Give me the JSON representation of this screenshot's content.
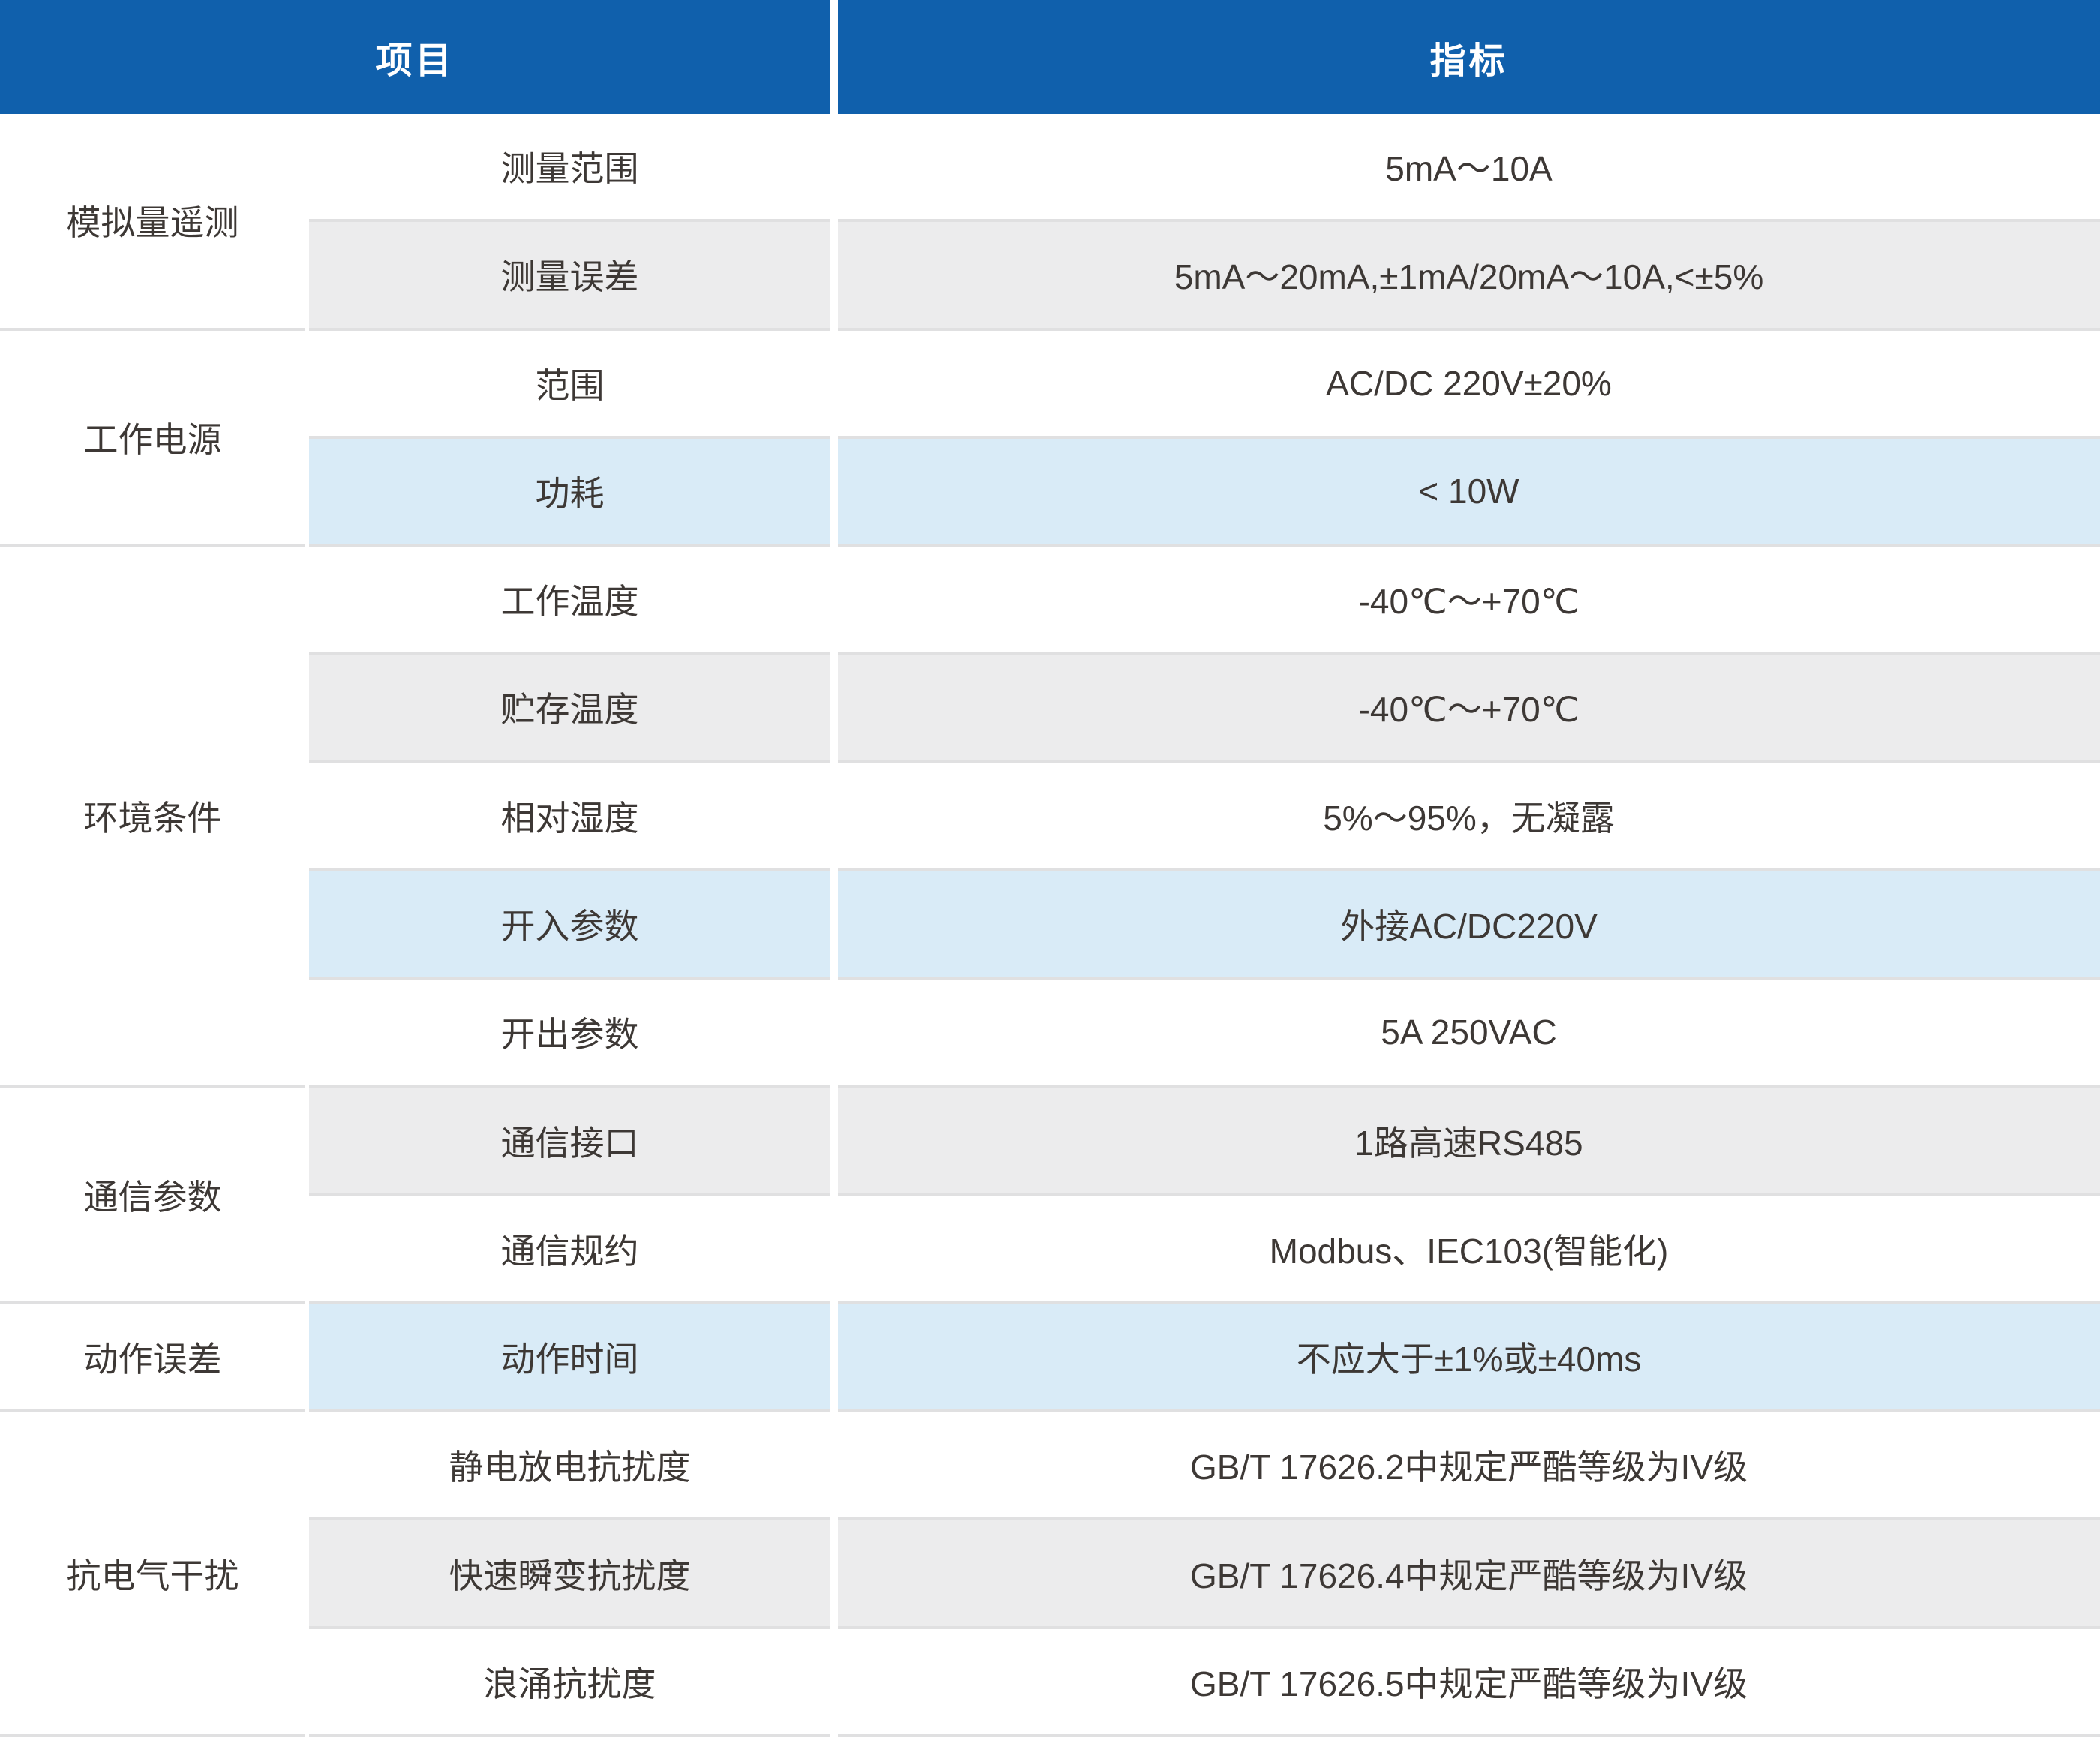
{
  "table": {
    "header": {
      "item_col": "项目",
      "spec_col": "指标"
    },
    "groups": [
      {
        "label": "模拟量遥测",
        "rows": 2
      },
      {
        "label": "工作电源",
        "rows": 2
      },
      {
        "label": "环境条件",
        "rows": 5
      },
      {
        "label": "通信参数",
        "rows": 2
      },
      {
        "label": "动作误差",
        "rows": 1
      },
      {
        "label": "抗电气干扰",
        "rows": 3
      }
    ],
    "rows": [
      {
        "item": "测量范围",
        "value": "5mA～10A"
      },
      {
        "item": "测量误差",
        "value": "5mA～20mA,±1mA/20mA～10A,<±5%"
      },
      {
        "item": "范围",
        "value": "AC/DC 220V±20%"
      },
      {
        "item": "功耗",
        "value": "< 10W"
      },
      {
        "item": "工作温度",
        "value": "-40℃～+70℃"
      },
      {
        "item": "贮存温度",
        "value": "-40℃～+70℃"
      },
      {
        "item": "相对湿度",
        "value": "5%～95%，无凝露"
      },
      {
        "item": "开入参数",
        "value": "外接AC/DC220V"
      },
      {
        "item": "开出参数",
        "value": "5A 250VAC"
      },
      {
        "item": "通信接口",
        "value": "1路高速RS485"
      },
      {
        "item": "通信规约",
        "value": "Modbus、IEC103(智能化)"
      },
      {
        "item": "动作时间",
        "value": "不应大于±1%或±40ms"
      },
      {
        "item": "静电放电抗扰度",
        "value": "GB/T 17626.2中规定严酷等级为IV级"
      },
      {
        "item": "快速瞬变抗扰度",
        "value": "GB/T 17626.4中规定严酷等级为IV级"
      },
      {
        "item": "浪涌抗扰度",
        "value": "GB/T 17626.5中规定严酷等级为IV级"
      }
    ],
    "colors": {
      "header_bg": "#1060ac",
      "header_text": "#ffffff",
      "stripe_gray": "#ececed",
      "stripe_blue": "#d9ebf7",
      "border": "#e0e0e1",
      "text": "#3d3835"
    }
  }
}
